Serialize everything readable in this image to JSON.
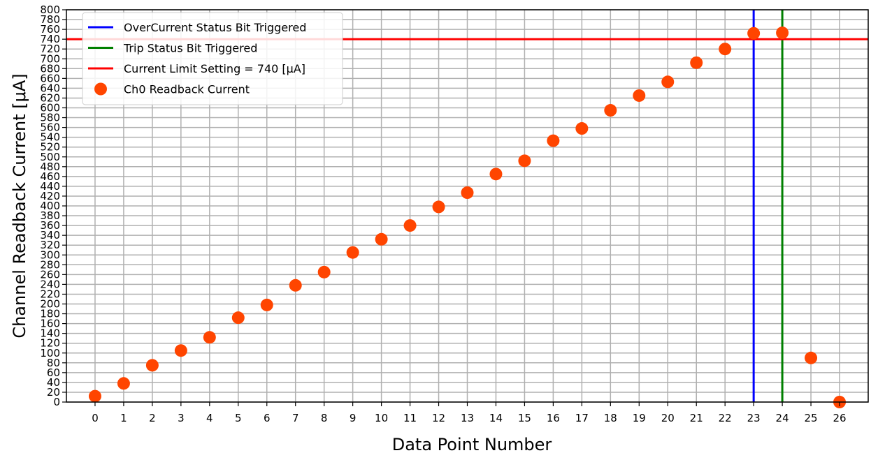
{
  "chart_data": {
    "type": "scatter",
    "title": "",
    "xlabel": "Data Point Number",
    "ylabel": "Channel Readback Current [μA]",
    "xlim": [
      -1,
      27
    ],
    "ylim": [
      0,
      800
    ],
    "x_ticks": [
      0,
      1,
      2,
      3,
      4,
      5,
      6,
      7,
      8,
      9,
      10,
      11,
      12,
      13,
      14,
      15,
      16,
      17,
      18,
      19,
      20,
      21,
      22,
      23,
      24,
      25,
      26
    ],
    "y_ticks": [
      0,
      20,
      40,
      60,
      80,
      100,
      120,
      140,
      160,
      180,
      200,
      220,
      240,
      260,
      280,
      300,
      320,
      340,
      360,
      380,
      400,
      420,
      440,
      460,
      480,
      500,
      520,
      540,
      560,
      580,
      600,
      620,
      640,
      660,
      680,
      700,
      720,
      740,
      760,
      780,
      800
    ],
    "grid": true,
    "legend_position": "top-left",
    "series": [
      {
        "name": "Ch0 Readback Current",
        "kind": "points",
        "color": "#ff4500",
        "x": [
          0,
          1,
          2,
          3,
          4,
          5,
          6,
          7,
          8,
          9,
          10,
          11,
          12,
          13,
          14,
          15,
          16,
          17,
          18,
          19,
          20,
          21,
          22,
          23,
          24,
          25,
          26
        ],
        "y": [
          12,
          38,
          75,
          105,
          132,
          172,
          198,
          238,
          265,
          305,
          332,
          360,
          398,
          427,
          465,
          492,
          533,
          558,
          595,
          625,
          653,
          692,
          720,
          752,
          753,
          90,
          0
        ]
      }
    ],
    "reference_lines": [
      {
        "name": "OverCurrent Status Bit Triggered",
        "orientation": "vertical",
        "value": 23,
        "color": "#0000ff"
      },
      {
        "name": "Trip Status Bit Triggered",
        "orientation": "vertical",
        "value": 24,
        "color": "#008000"
      },
      {
        "name": "Current Limit Setting = 740 [μA]",
        "orientation": "horizontal",
        "value": 740,
        "color": "#ff0000"
      }
    ]
  }
}
